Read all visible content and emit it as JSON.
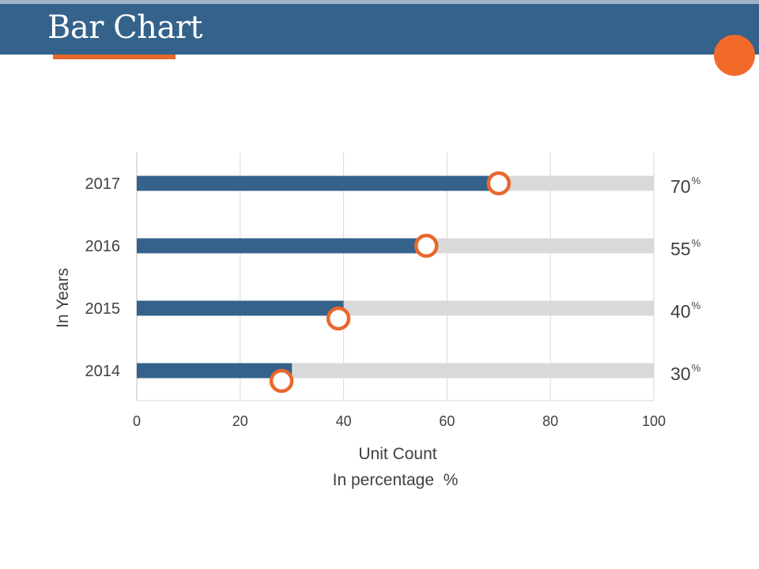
{
  "header": {
    "title": "Bar Chart"
  },
  "colors": {
    "header": "#34628a",
    "bar": "#34628a",
    "track": "#d9d9d9",
    "marker": "#e8672c",
    "accent": "#f26a2a"
  },
  "chart_data": {
    "type": "bar",
    "orientation": "horizontal",
    "categories": [
      "2014",
      "2015",
      "2016",
      "2017"
    ],
    "values": [
      30,
      40,
      55,
      70
    ],
    "max_track": 100,
    "markers": [
      28,
      39,
      56,
      70
    ],
    "value_labels": [
      "30",
      "40",
      "55",
      "70"
    ],
    "value_unit": "%",
    "xlim": [
      0,
      100
    ],
    "xticks": [
      0,
      20,
      40,
      60,
      80,
      100
    ],
    "xlabel": "Unit Count",
    "xsublabel": "In percentage  %",
    "ylabel": "In Years",
    "grid": true
  }
}
